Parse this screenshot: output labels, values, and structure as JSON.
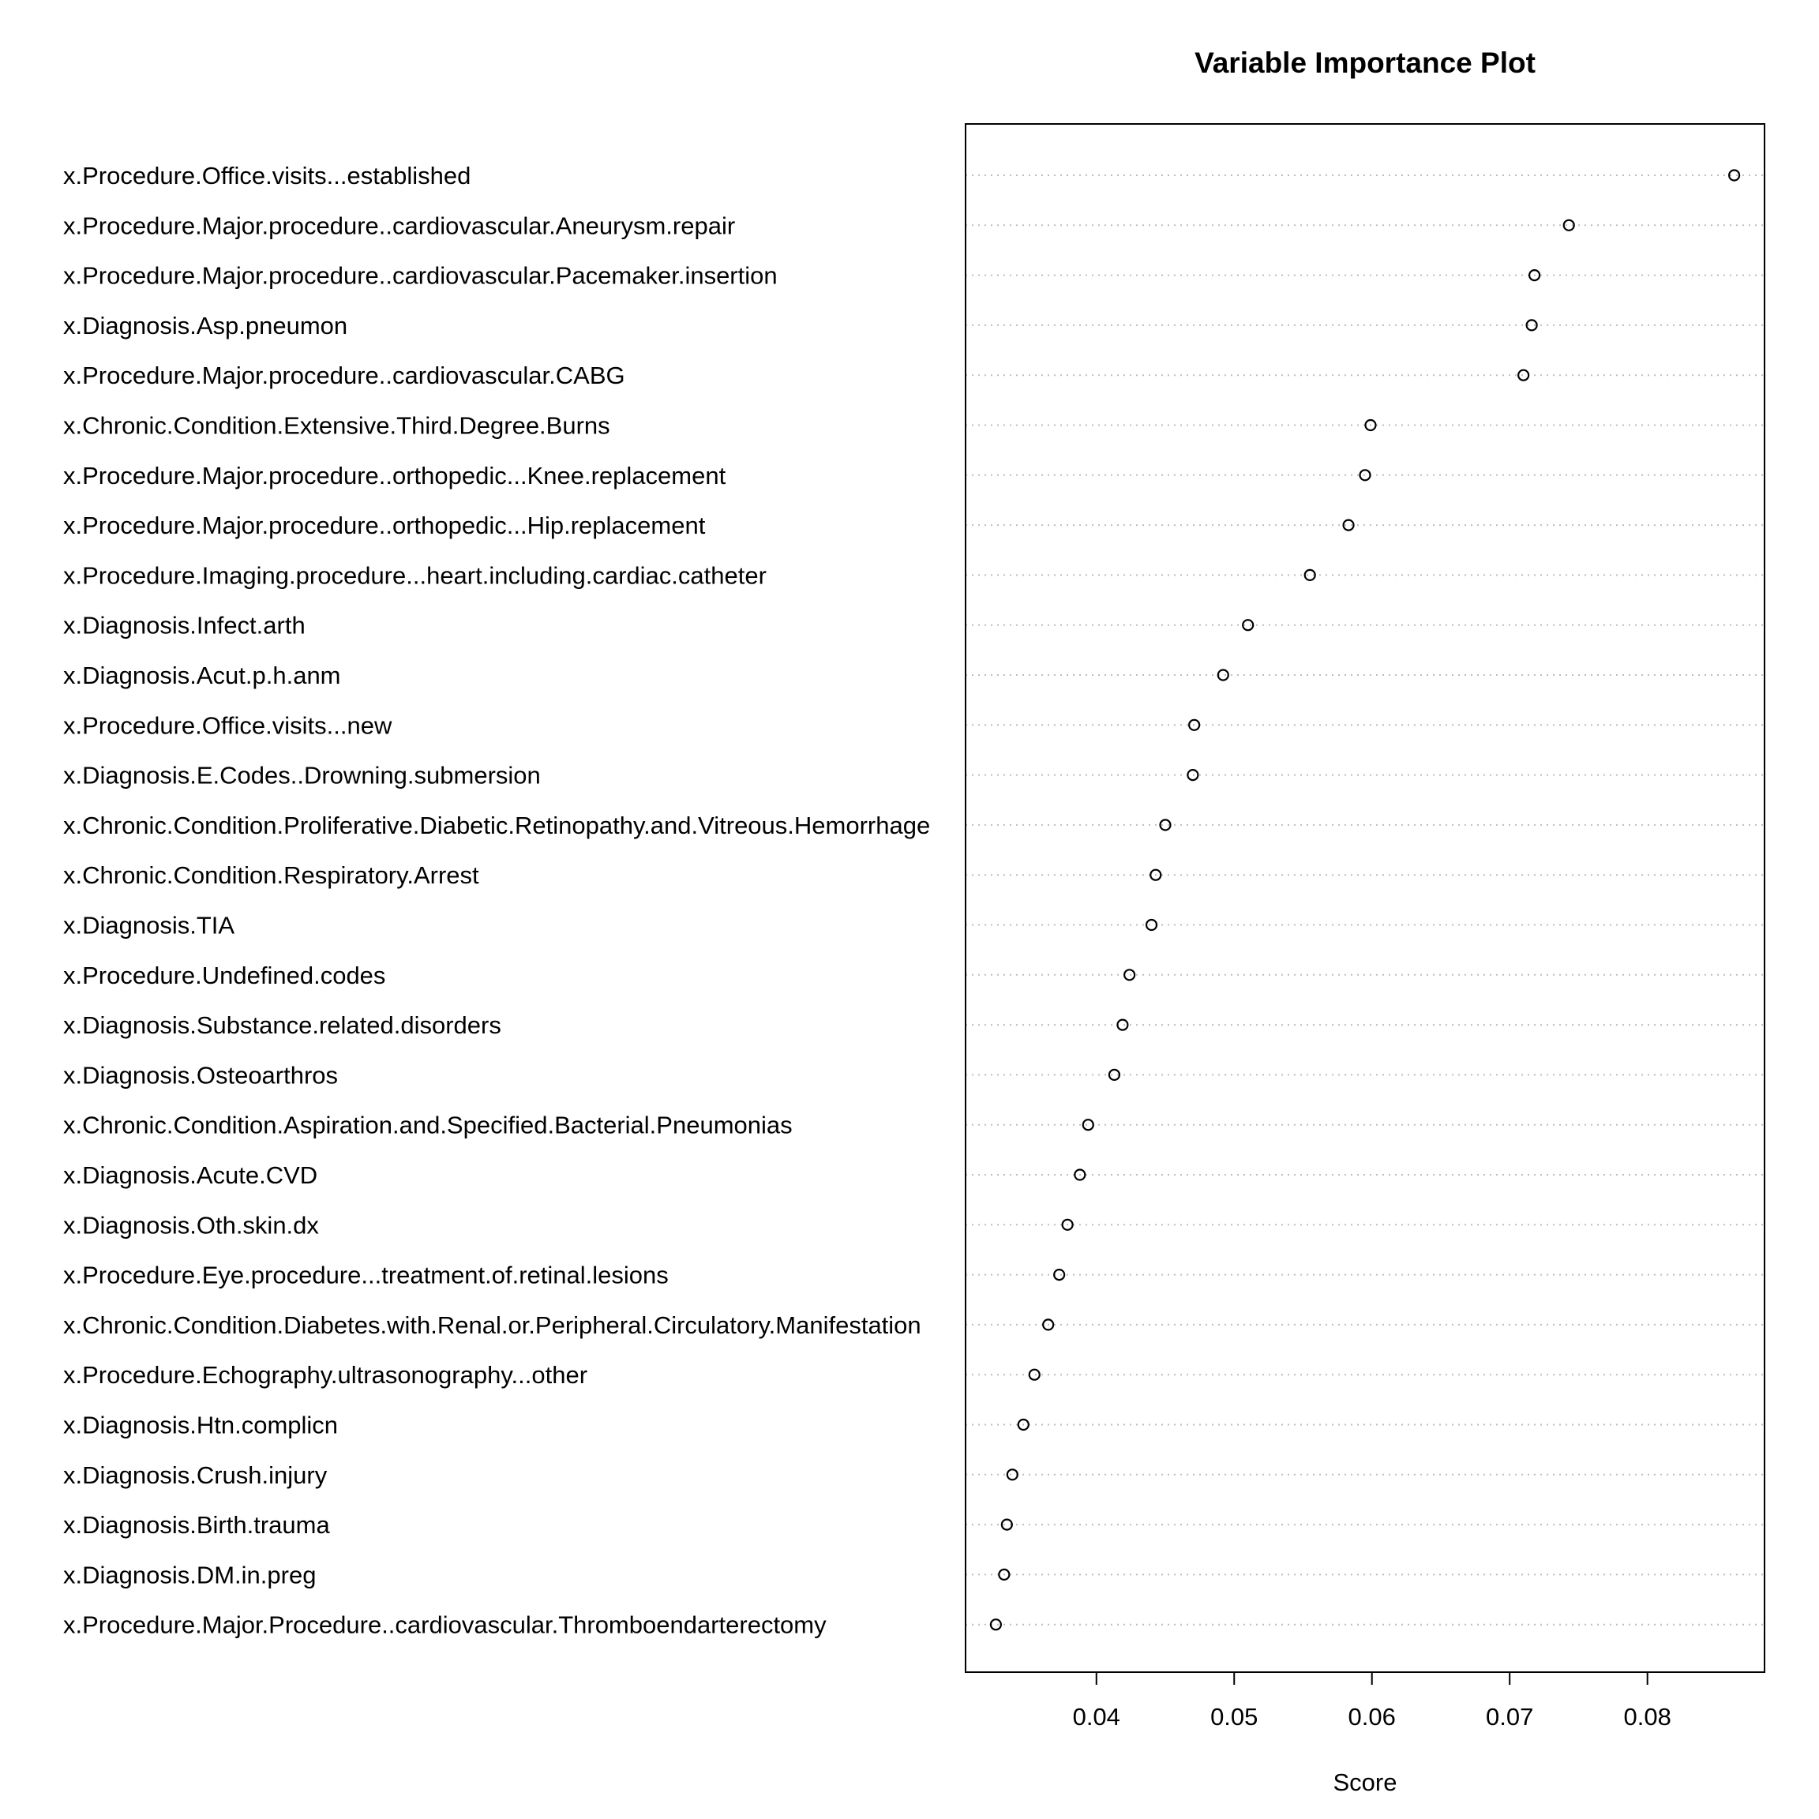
{
  "chart_data": {
    "type": "scatter",
    "title": "Variable Importance Plot",
    "xlabel": "Score",
    "ylabel": "",
    "xlim": [
      0.0305,
      0.0885
    ],
    "xticks": [
      0.04,
      0.05,
      0.06,
      0.07,
      0.08
    ],
    "xtick_labels": [
      "0.04",
      "0.05",
      "0.06",
      "0.07",
      "0.08"
    ],
    "grid": "horizontal dotted guide lines",
    "marker": "open circle",
    "categories": [
      "x.Procedure.Office.visits...established",
      "x.Procedure.Major.procedure..cardiovascular.Aneurysm.repair",
      "x.Procedure.Major.procedure..cardiovascular.Pacemaker.insertion",
      "x.Diagnosis.Asp.pneumon",
      "x.Procedure.Major.procedure..cardiovascular.CABG",
      "x.Chronic.Condition.Extensive.Third.Degree.Burns",
      "x.Procedure.Major.procedure..orthopedic...Knee.replacement",
      "x.Procedure.Major.procedure..orthopedic...Hip.replacement",
      "x.Procedure.Imaging.procedure...heart.including.cardiac.catheter",
      "x.Diagnosis.Infect.arth",
      "x.Diagnosis.Acut.p.h.anm",
      "x.Procedure.Office.visits...new",
      "x.Diagnosis.E.Codes..Drowning.submersion",
      "x.Chronic.Condition.Proliferative.Diabetic.Retinopathy.and.Vitreous.Hemorrhage",
      "x.Chronic.Condition.Respiratory.Arrest",
      "x.Diagnosis.TIA",
      "x.Procedure.Undefined.codes",
      "x.Diagnosis.Substance.related.disorders",
      "x.Diagnosis.Osteoarthros",
      "x.Chronic.Condition.Aspiration.and.Specified.Bacterial.Pneumonias",
      "x.Diagnosis.Acute.CVD",
      "x.Diagnosis.Oth.skin.dx",
      "x.Procedure.Eye.procedure...treatment.of.retinal.lesions",
      "x.Chronic.Condition.Diabetes.with.Renal.or.Peripheral.Circulatory.Manifestation",
      "x.Procedure.Echography.ultrasonography...other",
      "x.Diagnosis.Htn.complicn",
      "x.Diagnosis.Crush.injury",
      "x.Diagnosis.Birth.trauma",
      "x.Diagnosis.DM.in.preg",
      "x.Procedure.Major.Procedure..cardiovascular.Thromboendarterectomy"
    ],
    "values": [
      0.0863,
      0.0743,
      0.0718,
      0.0716,
      0.071,
      0.0599,
      0.0595,
      0.0583,
      0.0555,
      0.051,
      0.0492,
      0.0471,
      0.047,
      0.045,
      0.0443,
      0.044,
      0.0424,
      0.0419,
      0.0413,
      0.0394,
      0.0388,
      0.0379,
      0.0373,
      0.0365,
      0.0355,
      0.0347,
      0.0339,
      0.0335,
      0.0333,
      0.0327
    ]
  }
}
